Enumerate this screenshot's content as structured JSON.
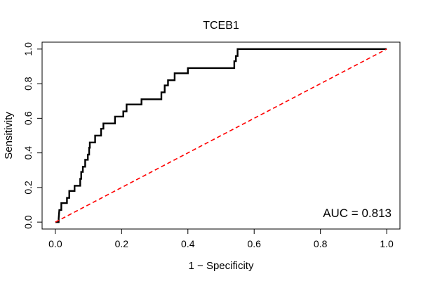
{
  "chart_data": {
    "type": "line",
    "title": "TCEB1",
    "xlabel": "1 − Specificity",
    "ylabel": "Sensitivity",
    "xlim": [
      0,
      1
    ],
    "ylim": [
      0,
      1
    ],
    "x_ticks": [
      "0.0",
      "0.2",
      "0.4",
      "0.6",
      "0.8",
      "1.0"
    ],
    "y_ticks": [
      "0.0",
      "0.2",
      "0.4",
      "0.6",
      "0.8",
      "1.0"
    ],
    "annotation": "AUC = 0.813",
    "grid": false,
    "series": [
      {
        "color": "#000000",
        "style": "step",
        "points": [
          [
            0.0,
            0.0
          ],
          [
            0.01,
            0.0
          ],
          [
            0.01,
            0.02
          ],
          [
            0.012,
            0.07
          ],
          [
            0.018,
            0.07
          ],
          [
            0.018,
            0.11
          ],
          [
            0.035,
            0.11
          ],
          [
            0.035,
            0.14
          ],
          [
            0.042,
            0.14
          ],
          [
            0.042,
            0.18
          ],
          [
            0.058,
            0.18
          ],
          [
            0.058,
            0.21
          ],
          [
            0.075,
            0.21
          ],
          [
            0.075,
            0.25
          ],
          [
            0.078,
            0.25
          ],
          [
            0.078,
            0.29
          ],
          [
            0.083,
            0.29
          ],
          [
            0.083,
            0.32
          ],
          [
            0.09,
            0.32
          ],
          [
            0.09,
            0.36
          ],
          [
            0.098,
            0.36
          ],
          [
            0.098,
            0.39
          ],
          [
            0.102,
            0.39
          ],
          [
            0.102,
            0.43
          ],
          [
            0.104,
            0.43
          ],
          [
            0.104,
            0.46
          ],
          [
            0.12,
            0.46
          ],
          [
            0.12,
            0.5
          ],
          [
            0.138,
            0.5
          ],
          [
            0.138,
            0.54
          ],
          [
            0.145,
            0.54
          ],
          [
            0.145,
            0.57
          ],
          [
            0.18,
            0.57
          ],
          [
            0.18,
            0.61
          ],
          [
            0.205,
            0.61
          ],
          [
            0.205,
            0.64
          ],
          [
            0.215,
            0.64
          ],
          [
            0.215,
            0.68
          ],
          [
            0.26,
            0.68
          ],
          [
            0.26,
            0.71
          ],
          [
            0.32,
            0.71
          ],
          [
            0.32,
            0.75
          ],
          [
            0.33,
            0.75
          ],
          [
            0.33,
            0.79
          ],
          [
            0.34,
            0.79
          ],
          [
            0.34,
            0.82
          ],
          [
            0.36,
            0.82
          ],
          [
            0.36,
            0.86
          ],
          [
            0.4,
            0.86
          ],
          [
            0.4,
            0.89
          ],
          [
            0.54,
            0.89
          ],
          [
            0.54,
            0.93
          ],
          [
            0.545,
            0.93
          ],
          [
            0.545,
            0.96
          ],
          [
            0.55,
            0.96
          ],
          [
            0.55,
            1.0
          ],
          [
            1.0,
            1.0
          ]
        ]
      },
      {
        "color": "#ff0000",
        "style": "dashed",
        "points": [
          [
            0,
            0
          ],
          [
            1,
            1
          ]
        ]
      }
    ]
  }
}
